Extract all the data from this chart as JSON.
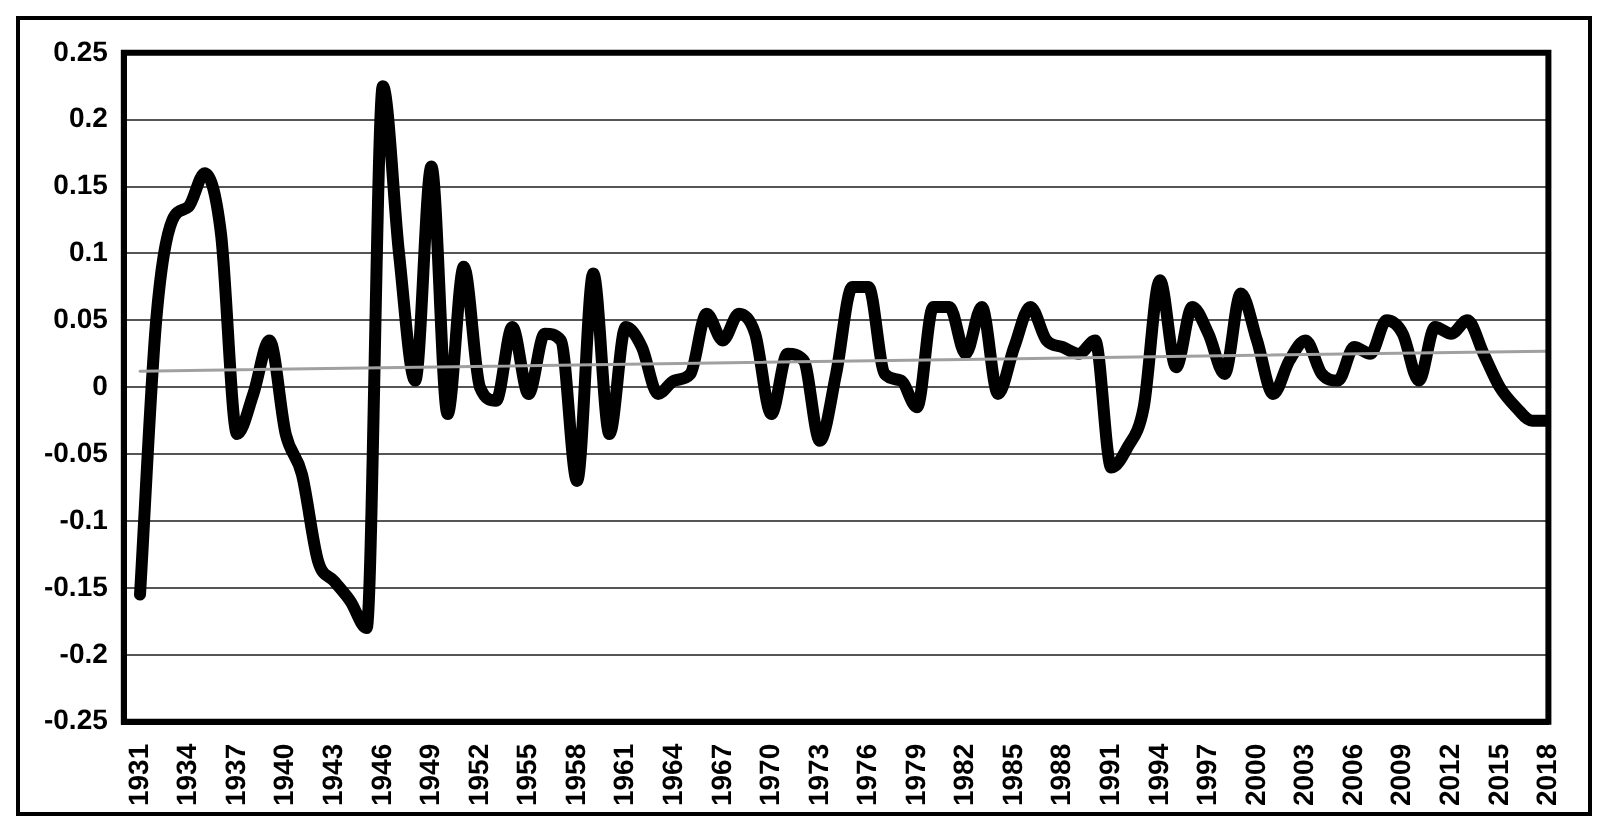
{
  "chart_data": {
    "type": "line",
    "x": [
      1931,
      1932,
      1933,
      1934,
      1935,
      1936,
      1937,
      1938,
      1939,
      1940,
      1941,
      1942,
      1943,
      1944,
      1945,
      1946,
      1947,
      1948,
      1949,
      1950,
      1951,
      1952,
      1953,
      1954,
      1955,
      1956,
      1957,
      1958,
      1959,
      1960,
      1961,
      1962,
      1963,
      1964,
      1965,
      1966,
      1967,
      1968,
      1969,
      1970,
      1971,
      1972,
      1973,
      1974,
      1975,
      1976,
      1977,
      1978,
      1979,
      1980,
      1981,
      1982,
      1983,
      1984,
      1985,
      1986,
      1987,
      1988,
      1989,
      1990,
      1991,
      1992,
      1993,
      1994,
      1995,
      1996,
      1997,
      1998,
      1999,
      2000,
      2001,
      2002,
      2003,
      2004,
      2005,
      2006,
      2007,
      2008,
      2009,
      2010,
      2011,
      2012,
      2013,
      2014,
      2015,
      2016,
      2017,
      2018
    ],
    "series": [
      {
        "color": "#000000",
        "values": [
          -0.155,
          0.05,
          0.125,
          0.135,
          0.16,
          0.115,
          -0.035,
          -0.005,
          0.035,
          -0.035,
          -0.065,
          -0.13,
          -0.145,
          -0.16,
          -0.18,
          0.225,
          0.1,
          0.005,
          0.165,
          -0.02,
          0.09,
          0.0,
          -0.01,
          0.045,
          -0.005,
          0.04,
          0.035,
          -0.07,
          0.085,
          -0.035,
          0.045,
          0.03,
          -0.005,
          0.005,
          0.01,
          0.055,
          0.035,
          0.055,
          0.04,
          -0.02,
          0.025,
          0.02,
          -0.04,
          0.01,
          0.075,
          0.075,
          0.01,
          0.005,
          -0.015,
          0.06,
          0.06,
          0.025,
          0.06,
          -0.005,
          0.03,
          0.06,
          0.035,
          0.03,
          0.025,
          0.035,
          -0.06,
          -0.045,
          -0.015,
          0.08,
          0.015,
          0.06,
          0.04,
          0.01,
          0.07,
          0.035,
          -0.005,
          0.02,
          0.035,
          0.01,
          0.005,
          0.03,
          0.025,
          0.05,
          0.04,
          0.005,
          0.045,
          0.04,
          0.05,
          0.025,
          0.0,
          -0.015,
          -0.025,
          -0.025
        ]
      },
      {
        "type": "line",
        "color": "#a0a0a0",
        "x": [
          1931,
          2018
        ],
        "values": [
          0.012,
          0.027
        ]
      }
    ],
    "xlim": [
      1930,
      2018
    ],
    "xticks": [
      1931,
      1934,
      1937,
      1940,
      1943,
      1946,
      1949,
      1952,
      1955,
      1958,
      1961,
      1964,
      1967,
      1970,
      1973,
      1976,
      1979,
      1982,
      1985,
      1988,
      1991,
      1994,
      1997,
      2000,
      2003,
      2006,
      2009,
      2012,
      2015,
      2018
    ],
    "ylim": [
      -0.25,
      0.25
    ],
    "yticks": [
      -0.25,
      -0.2,
      -0.15,
      -0.1,
      -0.05,
      0,
      0.05,
      0.1,
      0.15,
      0.2,
      0.25
    ],
    "grid": "y",
    "legend": false,
    "marker": "none",
    "line_style": "solid"
  }
}
